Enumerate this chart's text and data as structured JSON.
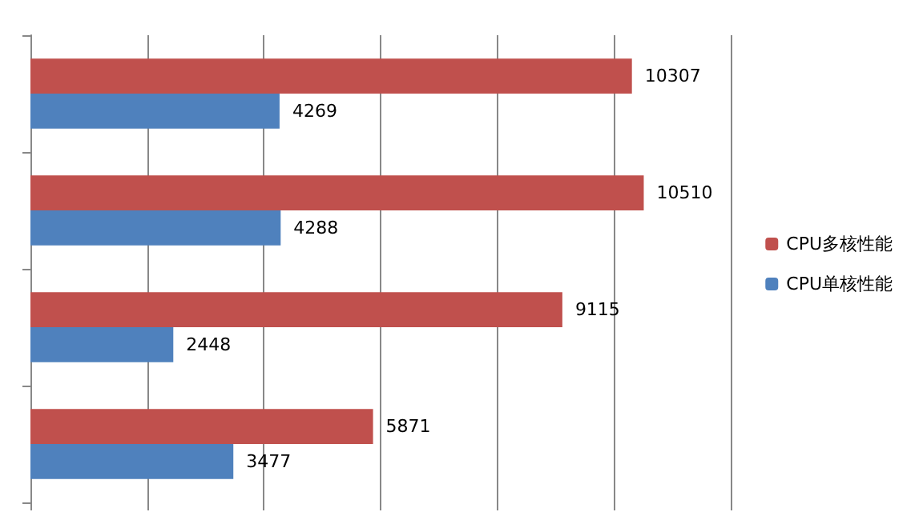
{
  "chart_data": {
    "type": "bar",
    "orientation": "horizontal",
    "categories": [
      null,
      null,
      null,
      null
    ],
    "series": [
      {
        "name": "CPU多核性能",
        "color": "#c0504d",
        "values": [
          10307,
          10510,
          9115,
          5871
        ]
      },
      {
        "name": "CPU单核性能",
        "color": "#4f81bd",
        "values": [
          4269,
          4288,
          2448,
          3477
        ]
      }
    ],
    "xlim": [
      0,
      12000
    ],
    "xticks": [
      {
        "value": 0,
        "label": null
      },
      {
        "value": 2000,
        "label": null
      },
      {
        "value": 4000,
        "label": null
      },
      {
        "value": 6000,
        "label": null
      },
      {
        "value": 8000,
        "label": null
      },
      {
        "value": 10000,
        "label": null
      },
      {
        "value": 12000,
        "label": null
      }
    ],
    "grid": "x",
    "legend": "right",
    "data_labels": true
  }
}
